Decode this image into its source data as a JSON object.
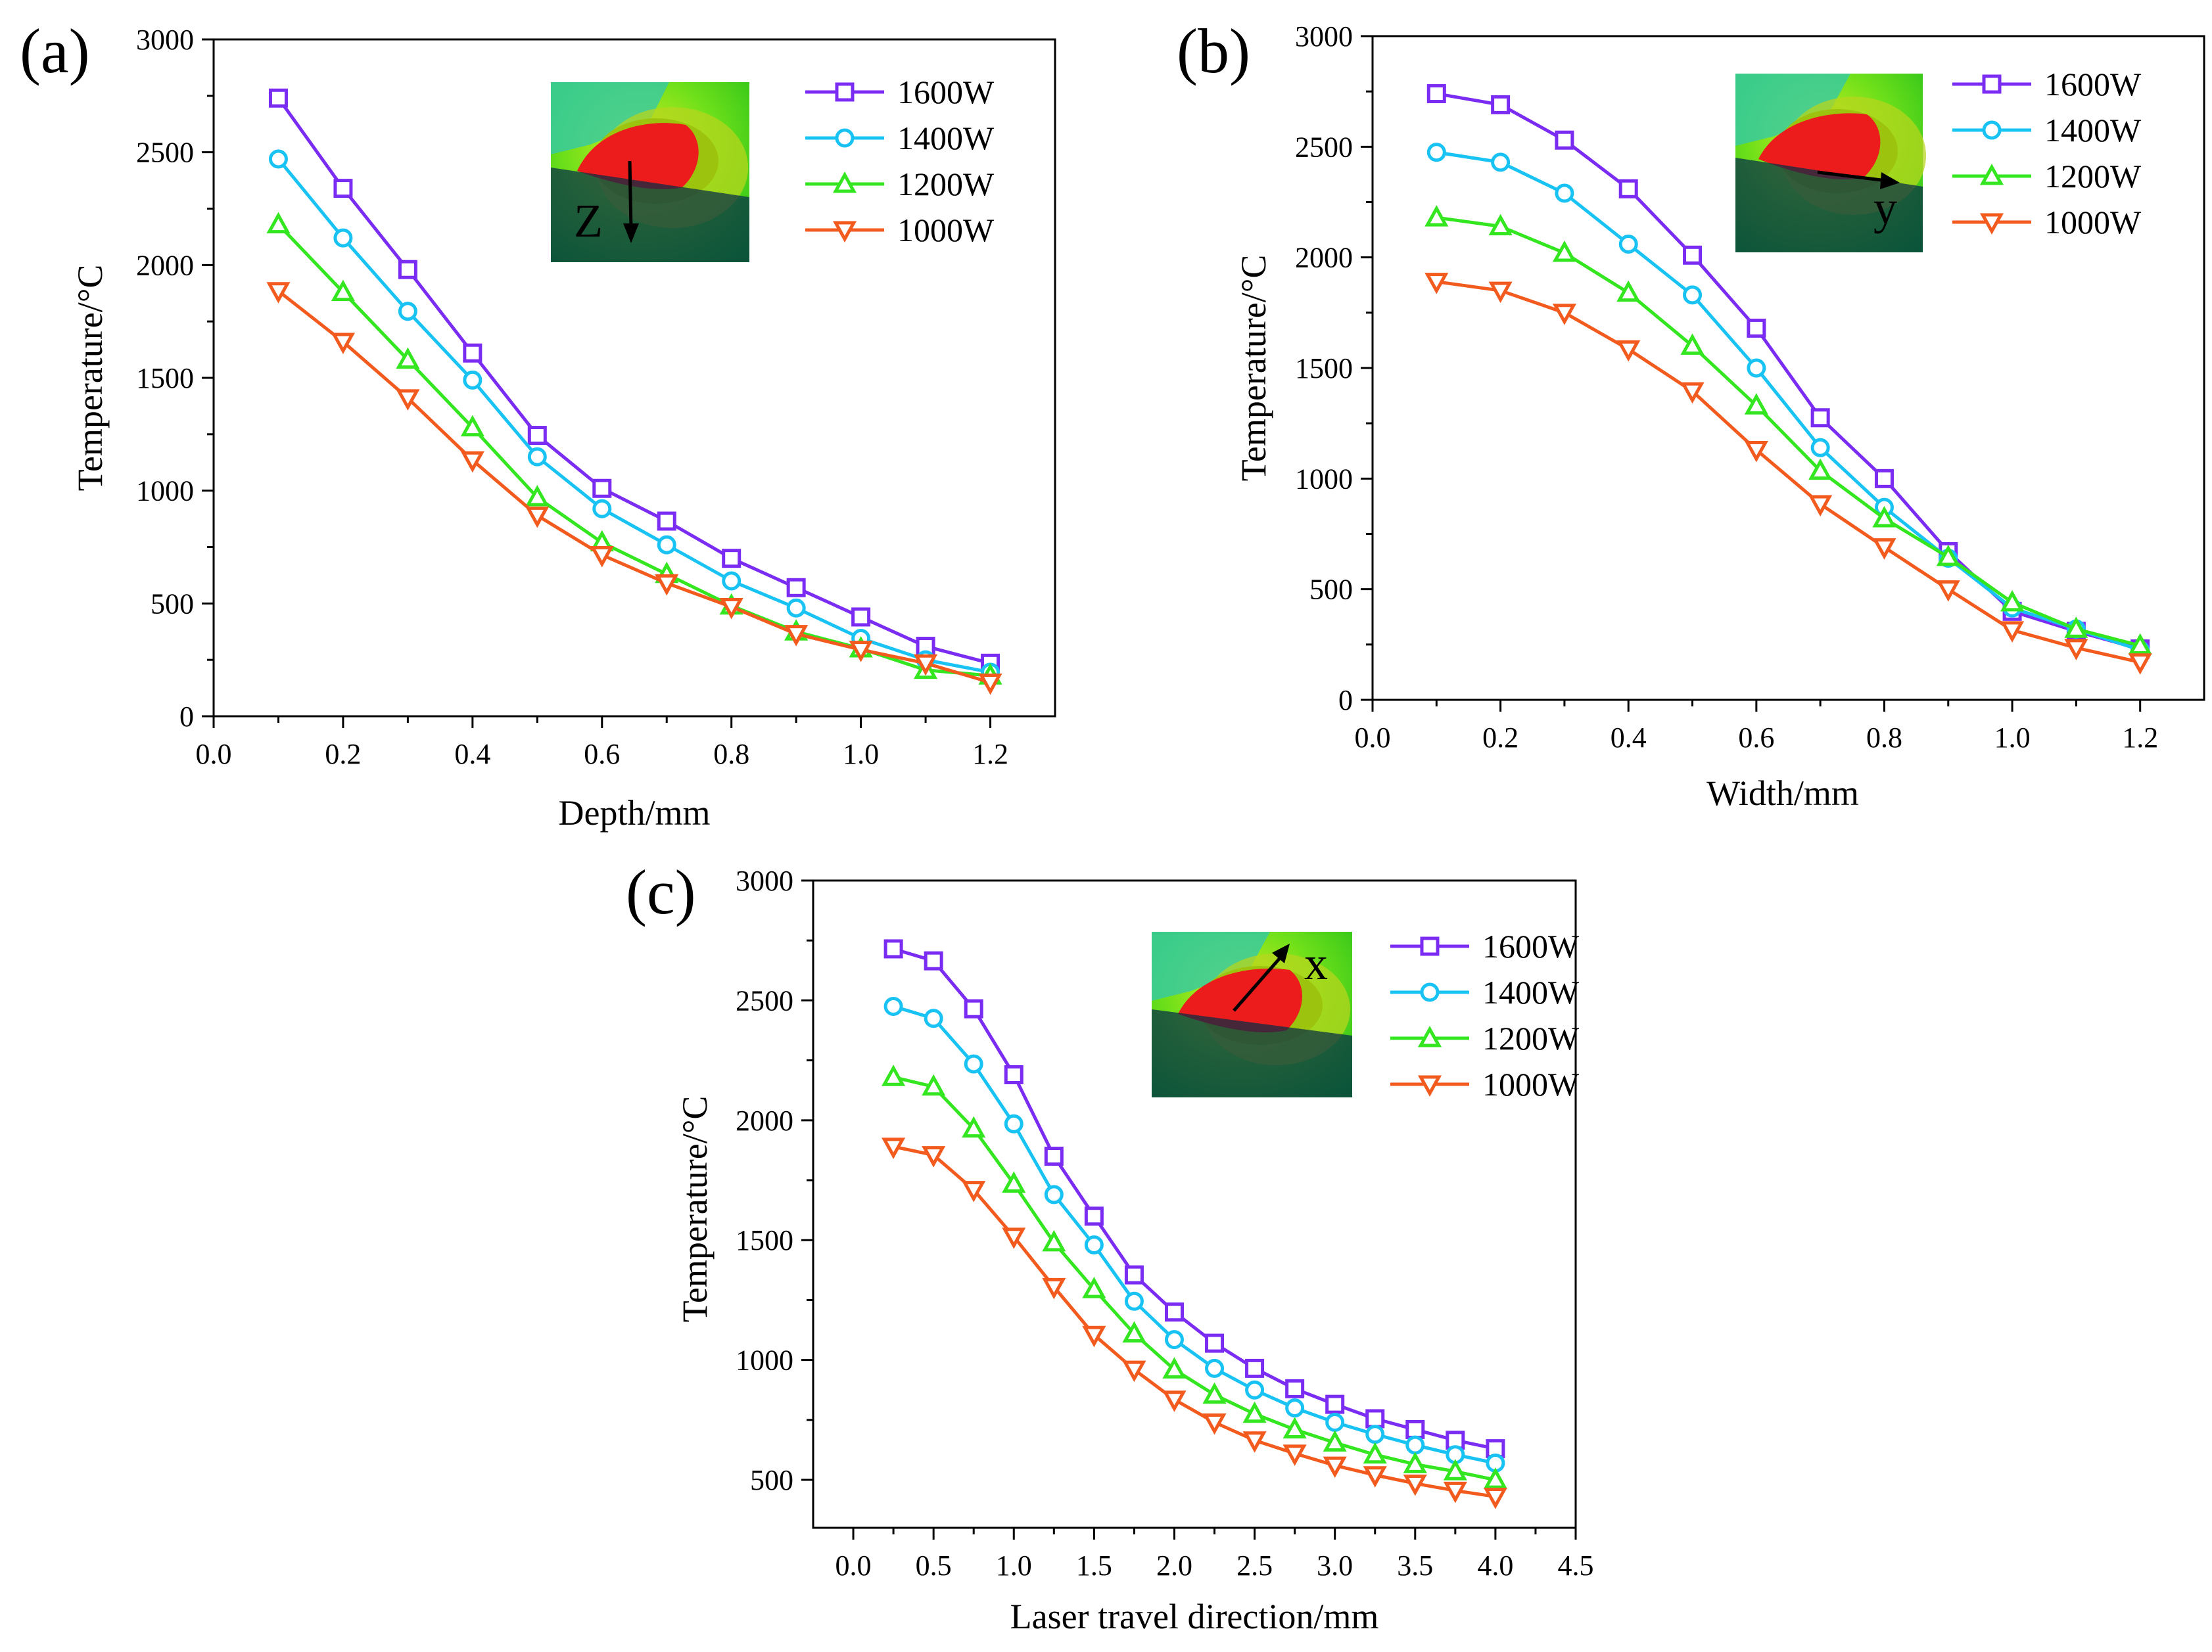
{
  "colors": {
    "1600W": "#7b2cf2",
    "1400W": "#18c3f4",
    "1200W": "#33e620",
    "1000W": "#f25a1e"
  },
  "chart_data": [
    {
      "type": "line",
      "panel": "(a)",
      "xlabel": "Depth/mm",
      "ylabel": "Temperature/°C",
      "xlim": [
        0.0,
        1.3
      ],
      "ylim": [
        0,
        3000
      ],
      "xticks": [
        "0.0",
        "0.2",
        "0.4",
        "0.6",
        "0.8",
        "1.0",
        "1.2"
      ],
      "yticks": [
        "0",
        "500",
        "1000",
        "1500",
        "2000",
        "2500",
        "3000"
      ],
      "x": [
        0.1,
        0.2,
        0.3,
        0.4,
        0.5,
        0.6,
        0.7,
        0.8,
        0.9,
        1.0,
        1.1,
        1.2
      ],
      "inset_label": "Z",
      "inset_direction": "down",
      "legend": "top-right",
      "series": [
        {
          "name": "1600W",
          "marker": "square",
          "values": [
            2740,
            2340,
            1980,
            1610,
            1245,
            1010,
            865,
            700,
            570,
            440,
            310,
            235
          ]
        },
        {
          "name": "1400W",
          "marker": "circle",
          "values": [
            2470,
            2120,
            1795,
            1490,
            1150,
            920,
            760,
            600,
            480,
            345,
            250,
            195
          ]
        },
        {
          "name": "1200W",
          "marker": "triangle-up",
          "values": [
            2180,
            1880,
            1580,
            1280,
            970,
            770,
            630,
            490,
            375,
            300,
            205,
            180
          ]
        },
        {
          "name": "1000W",
          "marker": "triangle-down",
          "values": [
            1885,
            1660,
            1410,
            1135,
            890,
            715,
            590,
            485,
            365,
            295,
            235,
            150
          ]
        }
      ]
    },
    {
      "type": "line",
      "panel": "(b)",
      "xlabel": "Width/mm",
      "ylabel": "Temperature/°C",
      "xlim": [
        0.0,
        1.3
      ],
      "ylim": [
        0,
        3000
      ],
      "xticks": [
        "0.0",
        "0.2",
        "0.4",
        "0.6",
        "0.8",
        "1.0",
        "1.2"
      ],
      "yticks": [
        "0",
        "500",
        "1000",
        "1500",
        "2000",
        "2500",
        "3000"
      ],
      "x": [
        0.1,
        0.2,
        0.3,
        0.4,
        0.5,
        0.6,
        0.7,
        0.8,
        0.9,
        1.0,
        1.1,
        1.2
      ],
      "inset_label": "y",
      "inset_direction": "right",
      "legend": "top-right",
      "series": [
        {
          "name": "1600W",
          "marker": "square",
          "values": [
            2740,
            2690,
            2530,
            2310,
            2010,
            1680,
            1275,
            1000,
            670,
            400,
            310,
            230
          ]
        },
        {
          "name": "1400W",
          "marker": "circle",
          "values": [
            2475,
            2430,
            2290,
            2060,
            1830,
            1500,
            1140,
            870,
            640,
            415,
            320,
            225
          ]
        },
        {
          "name": "1200W",
          "marker": "triangle-up",
          "values": [
            2180,
            2140,
            2020,
            1840,
            1600,
            1330,
            1035,
            820,
            645,
            440,
            320,
            245
          ]
        },
        {
          "name": "1000W",
          "marker": "triangle-down",
          "values": [
            1890,
            1850,
            1750,
            1585,
            1395,
            1130,
            885,
            690,
            500,
            315,
            235,
            170
          ]
        }
      ]
    },
    {
      "type": "line",
      "panel": "(c)",
      "xlabel": "Laser travel direction/mm",
      "ylabel": "Temperature/°C",
      "xlim": [
        -0.25,
        4.5
      ],
      "ylim": [
        300,
        3000
      ],
      "xticks": [
        "0.0",
        "0.5",
        "1.0",
        "1.5",
        "2.0",
        "2.5",
        "3.0",
        "3.5",
        "4.0",
        "4.5"
      ],
      "yticks": [
        "500",
        "1000",
        "1500",
        "2000",
        "2500",
        "3000"
      ],
      "x": [
        0.25,
        0.5,
        0.75,
        1.0,
        1.25,
        1.5,
        1.75,
        2.0,
        2.25,
        2.5,
        2.75,
        3.0,
        3.25,
        3.5,
        3.75,
        4.0
      ],
      "inset_label": "x",
      "inset_direction": "up-right",
      "legend": "top-right",
      "series": [
        {
          "name": "1600W",
          "marker": "square",
          "values": [
            2715,
            2665,
            2465,
            2190,
            1850,
            1600,
            1355,
            1200,
            1070,
            965,
            880,
            815,
            755,
            710,
            665,
            630
          ]
        },
        {
          "name": "1400W",
          "marker": "circle",
          "values": [
            2475,
            2425,
            2235,
            1985,
            1690,
            1480,
            1245,
            1085,
            965,
            875,
            800,
            740,
            690,
            645,
            605,
            570
          ]
        },
        {
          "name": "1200W",
          "marker": "triangle-up",
          "values": [
            2180,
            2140,
            1965,
            1735,
            1490,
            1295,
            1110,
            960,
            855,
            775,
            710,
            655,
            605,
            565,
            535,
            500
          ]
        },
        {
          "name": "1000W",
          "marker": "triangle-down",
          "values": [
            1890,
            1855,
            1710,
            1515,
            1305,
            1105,
            960,
            835,
            740,
            665,
            610,
            560,
            520,
            485,
            455,
            430
          ]
        }
      ]
    }
  ]
}
